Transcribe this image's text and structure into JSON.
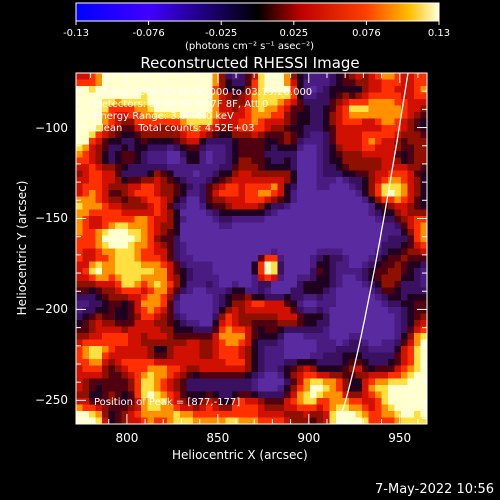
{
  "colorbar": {
    "ticks": [
      "-0.13",
      "-0.076",
      "-0.025",
      "0.025",
      "0.076",
      "0.13"
    ],
    "units": "(photons cm⁻² s⁻¹ asec⁻²)",
    "min": -0.13,
    "max": 0.13
  },
  "title": "Reconstructed RHESSI Image",
  "info": {
    "time_range": "13-Sep-2006 03:18:00.000 to 03:19:20.000",
    "detectors": "Detectors: 3F 4F 5F 6F 7F 8F, Att 0",
    "energy": "Energy Range: 3.0 - 6.0 keV",
    "clean": "Clean     Total counts: 4.52E+03",
    "peak": "Position of Peak = [877,-177]"
  },
  "footer": {
    "timestamp": "7-May-2022 10:56"
  },
  "chart_data": {
    "type": "heatmap",
    "title": "Reconstructed RHESSI Image",
    "xlabel": "Heliocentric X (arcsec)",
    "ylabel": "Heliocentric Y (arcsec)",
    "xlim": [
      772,
      965
    ],
    "ylim": [
      -263,
      -70
    ],
    "xticks": [
      800,
      850,
      900,
      950
    ],
    "yticks": [
      -100,
      -150,
      -200,
      -250
    ],
    "peak": {
      "x": 877,
      "y": -177,
      "value": 0.13
    },
    "grid": false,
    "colors": {
      "negative_end": "#0000ff",
      "neutral": "#000000",
      "positive_mid": "#ff2000",
      "positive_end": "#ffffff"
    }
  }
}
